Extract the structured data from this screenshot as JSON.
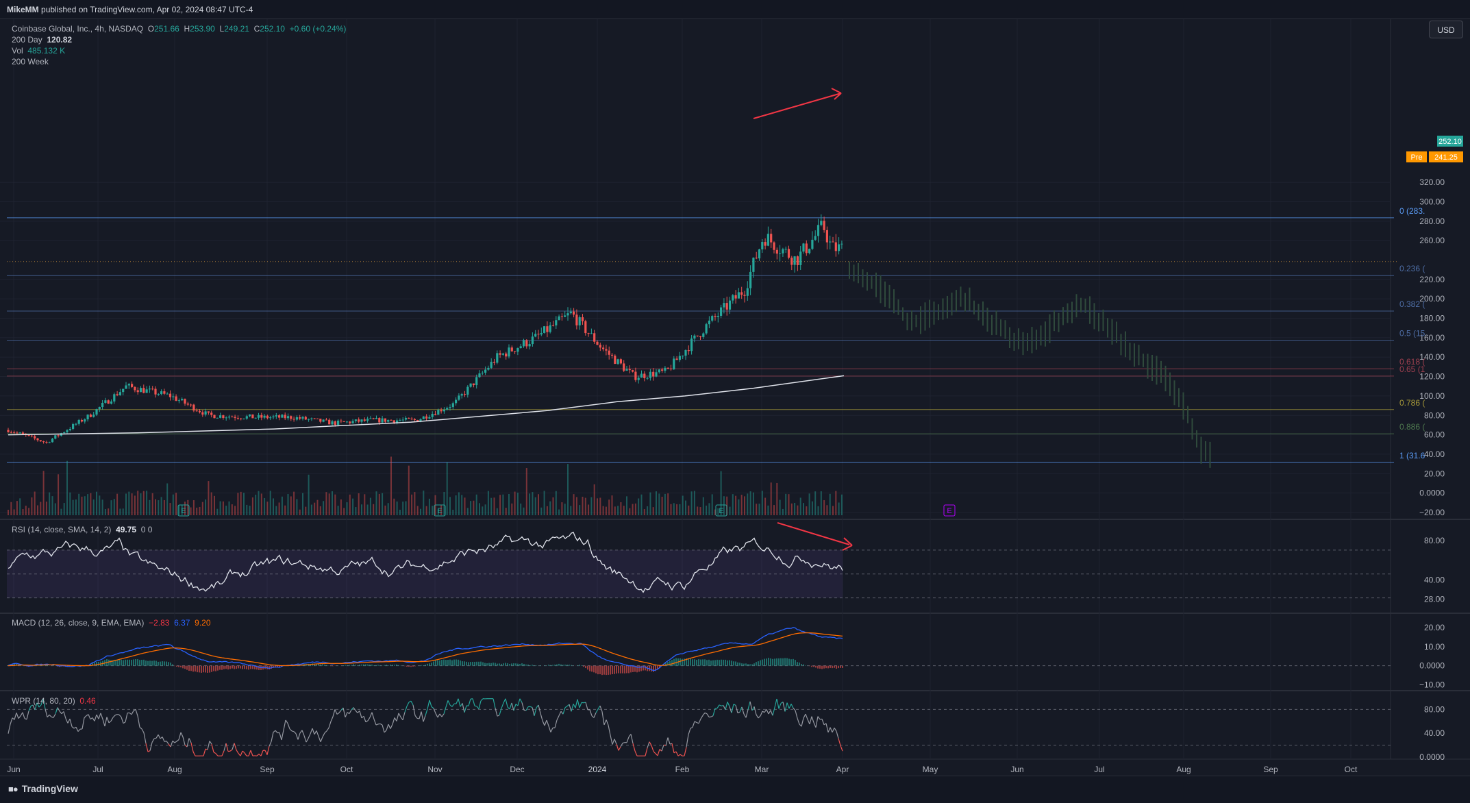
{
  "header": {
    "publisher": "MikeMM",
    "published_text": "published on TradingView.com, Apr 02, 2024 08:47 UTC-4"
  },
  "currency_button": "USD",
  "legend": {
    "symbol": "Coinbase Global, Inc., 4h, NASDAQ",
    "open_label": "O",
    "open": "251.66",
    "high_label": "H",
    "high": "253.90",
    "low_label": "L",
    "low": "249.21",
    "close_label": "C",
    "close": "252.10",
    "change": "+0.60 (+0.24%)",
    "ma_label": "200 Day",
    "ma_value": "120.82",
    "vol_label": "Vol",
    "vol_value": "485.132 K",
    "week_label": "200 Week"
  },
  "price_axis": {
    "ticks": [
      "320.00",
      "300.00",
      "280.00",
      "260.00",
      "220.00",
      "200.00",
      "180.00",
      "160.00",
      "140.00",
      "120.00",
      "100.00",
      "80.00",
      "60.00",
      "40.00",
      "20.00",
      "0.0000",
      "−20.00"
    ],
    "last_price": "252.10",
    "pre_label": "Pre",
    "pre_price": "241.25"
  },
  "fib_levels": [
    {
      "label": "0 (283.",
      "value": 283.5,
      "color": "#5b9cf6"
    },
    {
      "label": "0.236 (",
      "value": 224,
      "color": "#4f6fa8"
    },
    {
      "label": "0.382 (",
      "value": 187.5,
      "color": "#4f6fa8"
    },
    {
      "label": "0.5 (15",
      "value": 157.5,
      "color": "#4f6fa8"
    },
    {
      "label": "0.618 (",
      "value": 128,
      "color": "#a04050"
    },
    {
      "label": "0.65 (1",
      "value": 120.5,
      "color": "#a04050"
    },
    {
      "label": "0.786 (",
      "value": 86,
      "color": "#a89a3a"
    },
    {
      "label": "0.886 (",
      "value": 61,
      "color": "#4f7a4f"
    },
    {
      "label": "1 (31.6",
      "value": 31.6,
      "color": "#5b9cf6"
    }
  ],
  "time_axis": [
    "Jun",
    "Jul",
    "Aug",
    "Sep",
    "Oct",
    "Nov",
    "Dec",
    "2024",
    "Feb",
    "Mar",
    "Apr",
    "May",
    "Jun",
    "Jul",
    "Aug",
    "Sep",
    "Oct"
  ],
  "earnings_markers": [
    "E",
    "E",
    "E",
    "E"
  ],
  "rsi": {
    "legend": "RSI (14, close, SMA, 14, 2)",
    "value": "49.75",
    "extra": "0  0",
    "ticks": [
      "80.00",
      "40.00",
      "28.00"
    ]
  },
  "macd": {
    "legend": "MACD (12, 26, close, 9, EMA, EMA)",
    "v1": "−2.83",
    "v2": "6.37",
    "v3": "9.20",
    "ticks": [
      "20.00",
      "10.00",
      "0.0000",
      "−10.00"
    ]
  },
  "wpr": {
    "legend": "WPR (14, 80, 20)",
    "value": "0.46",
    "ticks": [
      "80.00",
      "40.00",
      "0.0000"
    ]
  },
  "footer_brand": "TradingView",
  "colors": {
    "up": "#26a69a",
    "down": "#ef5350",
    "arrow": "#f23645",
    "ma": "#e0e3eb",
    "projection": "#2f4a3c"
  },
  "chart_data": {
    "type": "candlestick",
    "title": "Coinbase Global, Inc., 4h, NASDAQ",
    "x_range": [
      "Jun 2023",
      "Oct 2024"
    ],
    "ylim": [
      -20,
      330
    ],
    "price_path": [
      {
        "date": "2023-06-01",
        "price": 65
      },
      {
        "date": "2023-06-15",
        "price": 52
      },
      {
        "date": "2023-07-01",
        "price": 80
      },
      {
        "date": "2023-07-15",
        "price": 110
      },
      {
        "date": "2023-08-01",
        "price": 100
      },
      {
        "date": "2023-08-15",
        "price": 80
      },
      {
        "date": "2023-09-01",
        "price": 78
      },
      {
        "date": "2023-09-15",
        "price": 78
      },
      {
        "date": "2023-10-01",
        "price": 72
      },
      {
        "date": "2023-10-15",
        "price": 75
      },
      {
        "date": "2023-11-01",
        "price": 75
      },
      {
        "date": "2023-11-15",
        "price": 92
      },
      {
        "date": "2023-12-01",
        "price": 140
      },
      {
        "date": "2023-12-15",
        "price": 160
      },
      {
        "date": "2023-12-28",
        "price": 185
      },
      {
        "date": "2024-01-08",
        "price": 150
      },
      {
        "date": "2024-01-20",
        "price": 120
      },
      {
        "date": "2024-02-01",
        "price": 125
      },
      {
        "date": "2024-02-15",
        "price": 170
      },
      {
        "date": "2024-03-01",
        "price": 210
      },
      {
        "date": "2024-03-08",
        "price": 265
      },
      {
        "date": "2024-03-20",
        "price": 240
      },
      {
        "date": "2024-03-30",
        "price": 275
      },
      {
        "date": "2024-04-02",
        "price": 252.1
      }
    ],
    "ma_200_day_end": 120.82,
    "projection_path": [
      {
        "date": "2024-04-02",
        "price": 245
      },
      {
        "date": "2024-04-20",
        "price": 210
      },
      {
        "date": "2024-05-01",
        "price": 175
      },
      {
        "date": "2024-05-20",
        "price": 200
      },
      {
        "date": "2024-06-10",
        "price": 150
      },
      {
        "date": "2024-07-01",
        "price": 195
      },
      {
        "date": "2024-07-20",
        "price": 145
      },
      {
        "date": "2024-08-01",
        "price": 120
      },
      {
        "date": "2024-08-10",
        "price": 80
      },
      {
        "date": "2024-08-15",
        "price": 40
      }
    ],
    "last_close": 252.1,
    "premarket": 241.25
  }
}
